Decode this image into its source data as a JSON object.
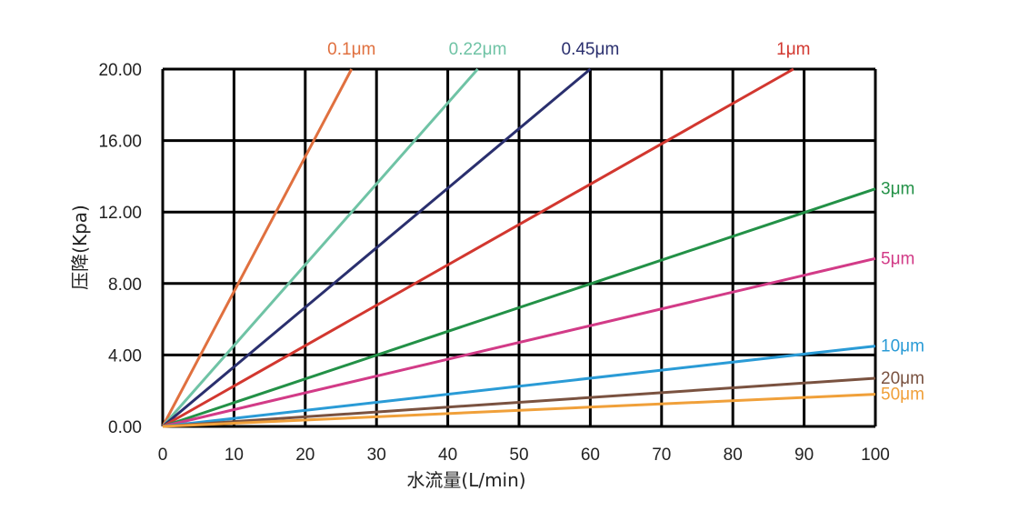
{
  "chart_data": {
    "type": "line",
    "title": "",
    "xlabel": "水流量(L/min)",
    "ylabel": "压降(Kpa)",
    "xlim": [
      0,
      100
    ],
    "ylim": [
      0,
      20
    ],
    "x_ticks": [
      "0",
      "10",
      "20",
      "30",
      "40",
      "50",
      "60",
      "70",
      "80",
      "90",
      "100"
    ],
    "y_ticks": [
      "0.00",
      "4.00",
      "8.00",
      "12.00",
      "16.00",
      "20.00"
    ],
    "grid": true,
    "series": [
      {
        "name": "0.1μm",
        "color": "#e0703f",
        "points": [
          [
            0,
            0
          ],
          [
            26.5,
            20.0
          ]
        ],
        "label_position": "top"
      },
      {
        "name": "0.22μm",
        "color": "#6fc3a5",
        "points": [
          [
            0,
            0
          ],
          [
            44.2,
            20.0
          ]
        ],
        "label_position": "top"
      },
      {
        "name": "0.45μm",
        "color": "#2a2f6e",
        "points": [
          [
            0,
            0
          ],
          [
            60.0,
            20.0
          ]
        ],
        "label_position": "top"
      },
      {
        "name": "1μm",
        "color": "#d2372f",
        "points": [
          [
            0,
            0
          ],
          [
            88.5,
            20.0
          ]
        ],
        "label_position": "top"
      },
      {
        "name": "3μm",
        "color": "#239147",
        "points": [
          [
            0,
            0
          ],
          [
            100,
            13.3
          ]
        ],
        "label_position": "right"
      },
      {
        "name": "5μm",
        "color": "#d23b87",
        "points": [
          [
            0,
            0
          ],
          [
            100,
            9.4
          ]
        ],
        "label_position": "right"
      },
      {
        "name": "10μm",
        "color": "#2a9bd6",
        "points": [
          [
            0,
            0
          ],
          [
            100,
            4.5
          ]
        ],
        "label_position": "right"
      },
      {
        "name": "20μm",
        "color": "#7a5240",
        "points": [
          [
            0,
            0
          ],
          [
            100,
            2.7
          ]
        ],
        "label_position": "right"
      },
      {
        "name": "50μm",
        "color": "#f0a03a",
        "points": [
          [
            0,
            0
          ],
          [
            100,
            1.8
          ]
        ],
        "label_position": "right"
      }
    ]
  }
}
